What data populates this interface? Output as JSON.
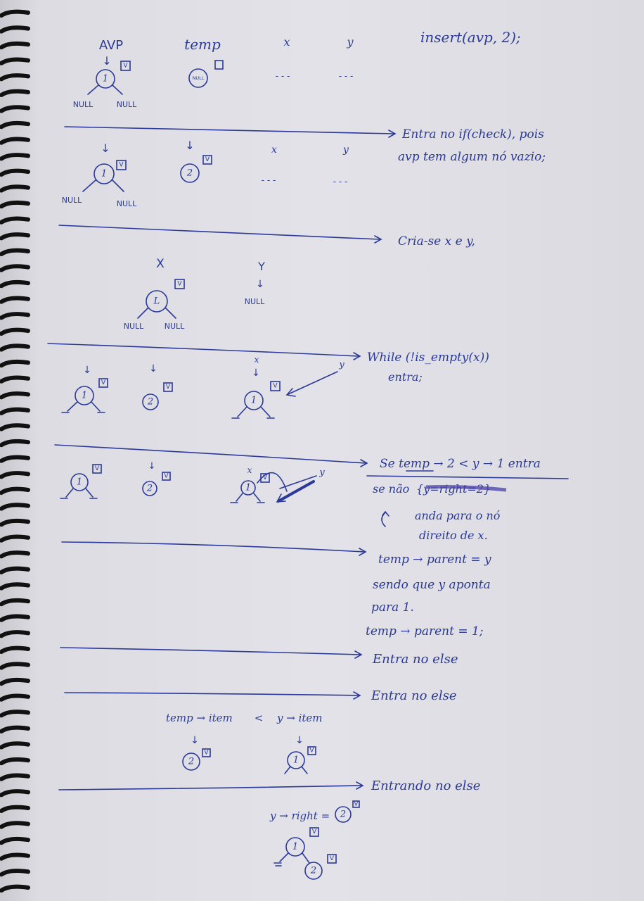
{
  "top_labels": {
    "avp": "AVP",
    "temp": "temp",
    "x": "x",
    "y": "y",
    "call": "insert(avp, 2);"
  },
  "common": {
    "null": "NULL",
    "dots": "- - -",
    "check": "V",
    "arrow_down": "↓"
  },
  "nodes": {
    "one": "1",
    "two": "2",
    "l": "L",
    "temp_null": "NULL"
  },
  "notes": {
    "s1_l1": "Entra no if(check), pois",
    "s1_l2": "avp tem algum nó vazio;",
    "s2": "Cria-se x e y,",
    "s3_l1": "While (!is_empty(x))",
    "s3_l2": "entra;",
    "s4_l1": "Se temp → 2 < y → 1 entra",
    "s4_l2_a": "se não",
    "s4_l2_b": "{y=right=2}",
    "s4_l3": "anda para o nó",
    "s4_l4": "direito de x.",
    "s5_l1": "temp → parent = y",
    "s5_l2": "sendo que y aponta",
    "s5_l3": "para 1.",
    "s5_l4": "temp → parent = 1;",
    "s6": "Entra no else",
    "s7": "Entra no else",
    "s8": "Entrando no else"
  },
  "misc": {
    "x_label": "X",
    "y_label": "Y",
    "compare_a": "temp → item",
    "compare_lt": "<",
    "compare_b": "y → item",
    "yright": "y → right ="
  }
}
